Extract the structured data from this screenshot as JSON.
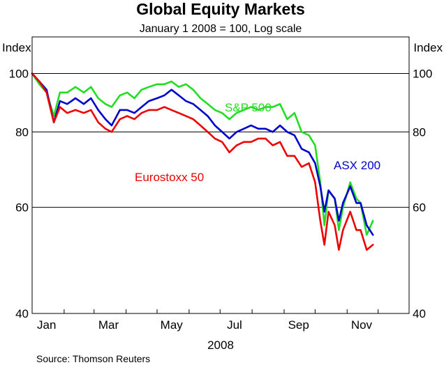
{
  "chart_data": {
    "type": "line",
    "title": "Global Equity Markets",
    "subtitle": "January 1 2008 = 100, Log scale",
    "ylabel_left": "Index",
    "ylabel_right": "Index",
    "xlabel": "2008",
    "source": "Source: Thomson Reuters",
    "y_scale": "log",
    "ylim": [
      40,
      115
    ],
    "y_ticks": [
      40,
      60,
      80,
      100
    ],
    "xlim": [
      "2008-01-01",
      "2008-12-31"
    ],
    "x_ticks": [
      {
        "label": "Jan",
        "date": "2008-01-15"
      },
      {
        "label": "Mar",
        "date": "2008-03-15"
      },
      {
        "label": "May",
        "date": "2008-05-15"
      },
      {
        "label": "Jul",
        "date": "2008-07-15"
      },
      {
        "label": "Sep",
        "date": "2008-09-15"
      },
      {
        "label": "Nov",
        "date": "2008-11-15"
      }
    ],
    "grid": "horizontal at 60, 80, 100",
    "series": [
      {
        "name": "S&P 500",
        "color": "#22dd22",
        "points": [
          [
            "2008-01-01",
            100
          ],
          [
            "2008-01-08",
            96
          ],
          [
            "2008-01-15",
            93
          ],
          [
            "2008-01-22",
            85
          ],
          [
            "2008-01-28",
            93
          ],
          [
            "2008-02-04",
            93
          ],
          [
            "2008-02-12",
            95
          ],
          [
            "2008-02-20",
            93
          ],
          [
            "2008-02-27",
            95
          ],
          [
            "2008-03-05",
            91
          ],
          [
            "2008-03-12",
            89
          ],
          [
            "2008-03-18",
            88
          ],
          [
            "2008-03-26",
            92
          ],
          [
            "2008-04-02",
            93
          ],
          [
            "2008-04-09",
            91
          ],
          [
            "2008-04-16",
            94
          ],
          [
            "2008-04-23",
            95
          ],
          [
            "2008-05-01",
            96
          ],
          [
            "2008-05-08",
            96
          ],
          [
            "2008-05-15",
            97
          ],
          [
            "2008-05-22",
            95
          ],
          [
            "2008-05-29",
            96
          ],
          [
            "2008-06-05",
            94
          ],
          [
            "2008-06-12",
            91
          ],
          [
            "2008-06-19",
            89
          ],
          [
            "2008-06-26",
            87
          ],
          [
            "2008-07-03",
            86
          ],
          [
            "2008-07-10",
            84
          ],
          [
            "2008-07-17",
            86
          ],
          [
            "2008-07-24",
            87
          ],
          [
            "2008-07-31",
            88
          ],
          [
            "2008-08-07",
            87
          ],
          [
            "2008-08-14",
            88
          ],
          [
            "2008-08-21",
            88
          ],
          [
            "2008-08-28",
            89
          ],
          [
            "2008-09-04",
            84
          ],
          [
            "2008-09-11",
            86
          ],
          [
            "2008-09-18",
            80
          ],
          [
            "2008-09-25",
            79
          ],
          [
            "2008-10-01",
            76
          ],
          [
            "2008-10-06",
            66
          ],
          [
            "2008-10-10",
            56
          ],
          [
            "2008-10-14",
            64
          ],
          [
            "2008-10-20",
            62
          ],
          [
            "2008-10-24",
            55
          ],
          [
            "2008-10-28",
            60
          ],
          [
            "2008-11-04",
            66
          ],
          [
            "2008-11-10",
            62
          ],
          [
            "2008-11-14",
            61
          ],
          [
            "2008-11-20",
            54
          ],
          [
            "2008-11-26",
            57
          ]
        ]
      },
      {
        "name": "ASX 200",
        "color": "#0000cc",
        "points": [
          [
            "2008-01-01",
            100
          ],
          [
            "2008-01-08",
            97
          ],
          [
            "2008-01-15",
            94
          ],
          [
            "2008-01-22",
            83
          ],
          [
            "2008-01-28",
            90
          ],
          [
            "2008-02-04",
            89
          ],
          [
            "2008-02-12",
            91
          ],
          [
            "2008-02-20",
            89
          ],
          [
            "2008-02-27",
            91
          ],
          [
            "2008-03-05",
            87
          ],
          [
            "2008-03-12",
            84
          ],
          [
            "2008-03-18",
            82
          ],
          [
            "2008-03-26",
            87
          ],
          [
            "2008-04-02",
            87
          ],
          [
            "2008-04-09",
            86
          ],
          [
            "2008-04-16",
            88
          ],
          [
            "2008-04-23",
            90
          ],
          [
            "2008-05-01",
            91
          ],
          [
            "2008-05-08",
            92
          ],
          [
            "2008-05-15",
            94
          ],
          [
            "2008-05-22",
            92
          ],
          [
            "2008-05-29",
            90
          ],
          [
            "2008-06-05",
            89
          ],
          [
            "2008-06-12",
            87
          ],
          [
            "2008-06-19",
            85
          ],
          [
            "2008-06-26",
            82
          ],
          [
            "2008-07-03",
            80
          ],
          [
            "2008-07-10",
            78
          ],
          [
            "2008-07-17",
            80
          ],
          [
            "2008-07-24",
            81
          ],
          [
            "2008-07-31",
            82
          ],
          [
            "2008-08-07",
            81
          ],
          [
            "2008-08-14",
            81
          ],
          [
            "2008-08-21",
            80
          ],
          [
            "2008-08-28",
            82
          ],
          [
            "2008-09-04",
            80
          ],
          [
            "2008-09-11",
            79
          ],
          [
            "2008-09-18",
            75
          ],
          [
            "2008-09-25",
            74
          ],
          [
            "2008-10-01",
            71
          ],
          [
            "2008-10-06",
            65
          ],
          [
            "2008-10-10",
            59
          ],
          [
            "2008-10-14",
            64
          ],
          [
            "2008-10-20",
            62
          ],
          [
            "2008-10-24",
            57
          ],
          [
            "2008-10-28",
            61
          ],
          [
            "2008-11-04",
            65
          ],
          [
            "2008-11-10",
            61
          ],
          [
            "2008-11-14",
            61
          ],
          [
            "2008-11-20",
            56
          ],
          [
            "2008-11-26",
            54
          ]
        ]
      },
      {
        "name": "Eurostoxx 50",
        "color": "#ee0000",
        "points": [
          [
            "2008-01-01",
            100
          ],
          [
            "2008-01-08",
            97
          ],
          [
            "2008-01-15",
            93
          ],
          [
            "2008-01-22",
            83
          ],
          [
            "2008-01-28",
            88
          ],
          [
            "2008-02-04",
            86
          ],
          [
            "2008-02-12",
            87
          ],
          [
            "2008-02-20",
            86
          ],
          [
            "2008-02-27",
            87
          ],
          [
            "2008-03-05",
            83
          ],
          [
            "2008-03-12",
            81
          ],
          [
            "2008-03-18",
            80
          ],
          [
            "2008-03-26",
            84
          ],
          [
            "2008-04-02",
            85
          ],
          [
            "2008-04-09",
            84
          ],
          [
            "2008-04-16",
            86
          ],
          [
            "2008-04-23",
            87
          ],
          [
            "2008-05-01",
            87
          ],
          [
            "2008-05-08",
            88
          ],
          [
            "2008-05-15",
            87
          ],
          [
            "2008-05-22",
            86
          ],
          [
            "2008-05-29",
            85
          ],
          [
            "2008-06-05",
            84
          ],
          [
            "2008-06-12",
            82
          ],
          [
            "2008-06-19",
            80
          ],
          [
            "2008-06-26",
            78
          ],
          [
            "2008-07-03",
            77
          ],
          [
            "2008-07-10",
            74
          ],
          [
            "2008-07-17",
            76
          ],
          [
            "2008-07-24",
            77
          ],
          [
            "2008-07-31",
            77
          ],
          [
            "2008-08-07",
            78
          ],
          [
            "2008-08-14",
            78
          ],
          [
            "2008-08-21",
            76
          ],
          [
            "2008-08-28",
            77
          ],
          [
            "2008-09-04",
            73
          ],
          [
            "2008-09-11",
            73
          ],
          [
            "2008-09-18",
            70
          ],
          [
            "2008-09-25",
            71
          ],
          [
            "2008-10-01",
            66
          ],
          [
            "2008-10-06",
            57
          ],
          [
            "2008-10-10",
            52
          ],
          [
            "2008-10-14",
            59
          ],
          [
            "2008-10-20",
            56
          ],
          [
            "2008-10-24",
            51
          ],
          [
            "2008-10-28",
            55
          ],
          [
            "2008-11-04",
            59
          ],
          [
            "2008-11-10",
            55
          ],
          [
            "2008-11-14",
            55
          ],
          [
            "2008-11-20",
            51
          ],
          [
            "2008-11-26",
            52
          ]
        ]
      }
    ]
  }
}
